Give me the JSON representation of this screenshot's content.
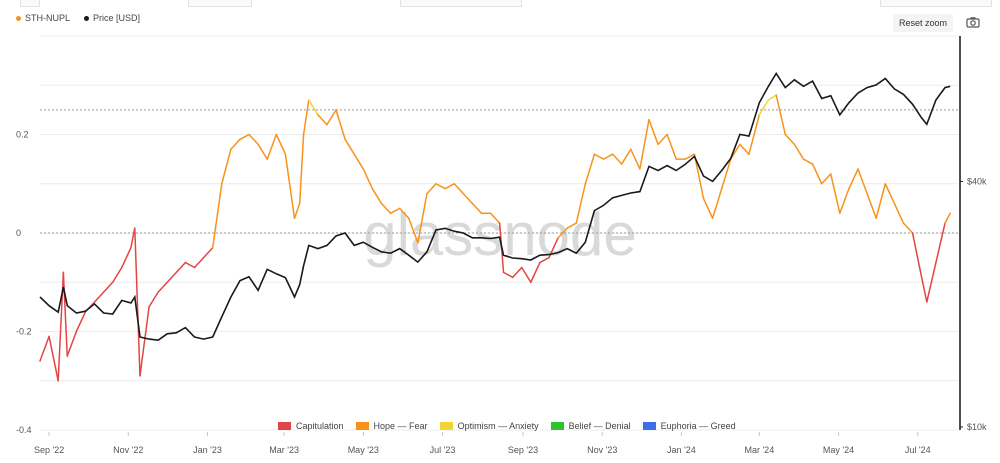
{
  "header": {
    "reset_zoom_label": "Reset zoom",
    "camera_icon": "camera-icon"
  },
  "watermark": "glassnode",
  "chart_data": {
    "type": "line",
    "series": [
      {
        "name": "STH-NUPL",
        "axis": "left",
        "color": "#f7931a",
        "values": [
          [
            "2022-08-25",
            -0.26
          ],
          [
            "2022-09-01",
            -0.21
          ],
          [
            "2022-09-08",
            -0.3
          ],
          [
            "2022-09-12",
            -0.08
          ],
          [
            "2022-09-15",
            -0.25
          ],
          [
            "2022-09-22",
            -0.2
          ],
          [
            "2022-09-29",
            -0.16
          ],
          [
            "2022-10-06",
            -0.14
          ],
          [
            "2022-10-13",
            -0.12
          ],
          [
            "2022-10-20",
            -0.1
          ],
          [
            "2022-10-27",
            -0.07
          ],
          [
            "2022-11-03",
            -0.03
          ],
          [
            "2022-11-06",
            0.01
          ],
          [
            "2022-11-10",
            -0.29
          ],
          [
            "2022-11-17",
            -0.15
          ],
          [
            "2022-11-24",
            -0.12
          ],
          [
            "2022-12-01",
            -0.1
          ],
          [
            "2022-12-08",
            -0.08
          ],
          [
            "2022-12-15",
            -0.06
          ],
          [
            "2022-12-22",
            -0.07
          ],
          [
            "2022-12-29",
            -0.05
          ],
          [
            "2023-01-05",
            -0.03
          ],
          [
            "2023-01-12",
            0.1
          ],
          [
            "2023-01-19",
            0.17
          ],
          [
            "2023-01-26",
            0.19
          ],
          [
            "2023-02-02",
            0.2
          ],
          [
            "2023-02-09",
            0.18
          ],
          [
            "2023-02-16",
            0.15
          ],
          [
            "2023-02-23",
            0.2
          ],
          [
            "2023-03-02",
            0.16
          ],
          [
            "2023-03-09",
            0.03
          ],
          [
            "2023-03-13",
            0.06
          ],
          [
            "2023-03-16",
            0.2
          ],
          [
            "2023-03-20",
            0.27
          ],
          [
            "2023-03-27",
            0.24
          ],
          [
            "2023-04-03",
            0.22
          ],
          [
            "2023-04-10",
            0.25
          ],
          [
            "2023-04-17",
            0.19
          ],
          [
            "2023-04-24",
            0.16
          ],
          [
            "2023-05-01",
            0.13
          ],
          [
            "2023-05-08",
            0.09
          ],
          [
            "2023-05-15",
            0.06
          ],
          [
            "2023-05-22",
            0.04
          ],
          [
            "2023-05-29",
            0.05
          ],
          [
            "2023-06-05",
            0.03
          ],
          [
            "2023-06-12",
            -0.02
          ],
          [
            "2023-06-19",
            0.08
          ],
          [
            "2023-06-26",
            0.1
          ],
          [
            "2023-07-03",
            0.09
          ],
          [
            "2023-07-10",
            0.1
          ],
          [
            "2023-07-17",
            0.08
          ],
          [
            "2023-07-24",
            0.06
          ],
          [
            "2023-07-31",
            0.04
          ],
          [
            "2023-08-07",
            0.04
          ],
          [
            "2023-08-14",
            0.02
          ],
          [
            "2023-08-17",
            -0.08
          ],
          [
            "2023-08-24",
            -0.09
          ],
          [
            "2023-08-31",
            -0.07
          ],
          [
            "2023-09-07",
            -0.1
          ],
          [
            "2023-09-14",
            -0.06
          ],
          [
            "2023-09-21",
            -0.05
          ],
          [
            "2023-09-28",
            -0.01
          ],
          [
            "2023-10-05",
            0.01
          ],
          [
            "2023-10-12",
            0.02
          ],
          [
            "2023-10-19",
            0.1
          ],
          [
            "2023-10-26",
            0.16
          ],
          [
            "2023-11-02",
            0.15
          ],
          [
            "2023-11-09",
            0.16
          ],
          [
            "2023-11-16",
            0.14
          ],
          [
            "2023-11-23",
            0.17
          ],
          [
            "2023-11-30",
            0.13
          ],
          [
            "2023-12-07",
            0.23
          ],
          [
            "2023-12-14",
            0.18
          ],
          [
            "2023-12-21",
            0.2
          ],
          [
            "2023-12-28",
            0.15
          ],
          [
            "2024-01-04",
            0.15
          ],
          [
            "2024-01-11",
            0.16
          ],
          [
            "2024-01-18",
            0.07
          ],
          [
            "2024-01-25",
            0.03
          ],
          [
            "2024-02-01",
            0.09
          ],
          [
            "2024-02-08",
            0.15
          ],
          [
            "2024-02-15",
            0.18
          ],
          [
            "2024-02-22",
            0.16
          ],
          [
            "2024-03-01",
            0.24
          ],
          [
            "2024-03-08",
            0.27
          ],
          [
            "2024-03-14",
            0.28
          ],
          [
            "2024-03-21",
            0.2
          ],
          [
            "2024-03-28",
            0.18
          ],
          [
            "2024-04-04",
            0.15
          ],
          [
            "2024-04-11",
            0.14
          ],
          [
            "2024-04-18",
            0.1
          ],
          [
            "2024-04-25",
            0.12
          ],
          [
            "2024-05-02",
            0.04
          ],
          [
            "2024-05-09",
            0.09
          ],
          [
            "2024-05-16",
            0.13
          ],
          [
            "2024-05-23",
            0.08
          ],
          [
            "2024-05-30",
            0.03
          ],
          [
            "2024-06-06",
            0.1
          ],
          [
            "2024-06-13",
            0.06
          ],
          [
            "2024-06-20",
            0.02
          ],
          [
            "2024-06-27",
            0.0
          ],
          [
            "2024-07-04",
            -0.09
          ],
          [
            "2024-07-08",
            -0.14
          ],
          [
            "2024-07-15",
            -0.06
          ],
          [
            "2024-07-22",
            0.02
          ],
          [
            "2024-07-26",
            0.04
          ]
        ]
      },
      {
        "name": "Price [USD]",
        "axis": "right",
        "color": "#1a1a1a",
        "values": [
          [
            "2022-08-25",
            21000
          ],
          [
            "2022-09-01",
            20000
          ],
          [
            "2022-09-08",
            19300
          ],
          [
            "2022-09-12",
            22200
          ],
          [
            "2022-09-15",
            20000
          ],
          [
            "2022-09-22",
            19200
          ],
          [
            "2022-09-29",
            19400
          ],
          [
            "2022-10-06",
            20200
          ],
          [
            "2022-10-13",
            19200
          ],
          [
            "2022-10-20",
            19100
          ],
          [
            "2022-10-27",
            20600
          ],
          [
            "2022-11-03",
            20300
          ],
          [
            "2022-11-06",
            21000
          ],
          [
            "2022-11-10",
            16800
          ],
          [
            "2022-11-17",
            16600
          ],
          [
            "2022-11-24",
            16500
          ],
          [
            "2022-12-01",
            17100
          ],
          [
            "2022-12-08",
            17200
          ],
          [
            "2022-12-15",
            17700
          ],
          [
            "2022-12-22",
            16800
          ],
          [
            "2022-12-29",
            16600
          ],
          [
            "2023-01-05",
            16800
          ],
          [
            "2023-01-12",
            18800
          ],
          [
            "2023-01-19",
            21000
          ],
          [
            "2023-01-26",
            23000
          ],
          [
            "2023-02-02",
            23500
          ],
          [
            "2023-02-09",
            21800
          ],
          [
            "2023-02-16",
            24500
          ],
          [
            "2023-02-23",
            23900
          ],
          [
            "2023-03-02",
            23400
          ],
          [
            "2023-03-09",
            21000
          ],
          [
            "2023-03-13",
            22500
          ],
          [
            "2023-03-16",
            25000
          ],
          [
            "2023-03-20",
            28000
          ],
          [
            "2023-03-27",
            27500
          ],
          [
            "2023-04-03",
            28000
          ],
          [
            "2023-04-10",
            29500
          ],
          [
            "2023-04-17",
            30000
          ],
          [
            "2023-04-24",
            28000
          ],
          [
            "2023-05-01",
            28500
          ],
          [
            "2023-05-08",
            27700
          ],
          [
            "2023-05-15",
            27000
          ],
          [
            "2023-05-22",
            26800
          ],
          [
            "2023-05-29",
            27500
          ],
          [
            "2023-06-05",
            26500
          ],
          [
            "2023-06-12",
            25500
          ],
          [
            "2023-06-19",
            27000
          ],
          [
            "2023-06-26",
            30500
          ],
          [
            "2023-07-03",
            30800
          ],
          [
            "2023-07-10",
            30300
          ],
          [
            "2023-07-17",
            30000
          ],
          [
            "2023-07-24",
            29200
          ],
          [
            "2023-07-31",
            29200
          ],
          [
            "2023-08-07",
            29100
          ],
          [
            "2023-08-14",
            29300
          ],
          [
            "2023-08-17",
            26500
          ],
          [
            "2023-08-24",
            26100
          ],
          [
            "2023-08-31",
            26000
          ],
          [
            "2023-09-07",
            25800
          ],
          [
            "2023-09-14",
            26500
          ],
          [
            "2023-09-21",
            26600
          ],
          [
            "2023-09-28",
            26900
          ],
          [
            "2023-10-05",
            27500
          ],
          [
            "2023-10-12",
            26800
          ],
          [
            "2023-10-19",
            28500
          ],
          [
            "2023-10-26",
            34000
          ],
          [
            "2023-11-02",
            35000
          ],
          [
            "2023-11-09",
            36500
          ],
          [
            "2023-11-16",
            37000
          ],
          [
            "2023-11-23",
            37500
          ],
          [
            "2023-11-30",
            37800
          ],
          [
            "2023-12-07",
            43500
          ],
          [
            "2023-12-14",
            42500
          ],
          [
            "2023-12-21",
            43700
          ],
          [
            "2023-12-28",
            42500
          ],
          [
            "2024-01-04",
            44000
          ],
          [
            "2024-01-11",
            46000
          ],
          [
            "2024-01-18",
            41200
          ],
          [
            "2024-01-25",
            40000
          ],
          [
            "2024-02-01",
            42500
          ],
          [
            "2024-02-08",
            45500
          ],
          [
            "2024-02-15",
            52000
          ],
          [
            "2024-02-22",
            51500
          ],
          [
            "2024-03-01",
            62000
          ],
          [
            "2024-03-08",
            68000
          ],
          [
            "2024-03-14",
            73000
          ],
          [
            "2024-03-21",
            67500
          ],
          [
            "2024-03-28",
            70500
          ],
          [
            "2024-04-04",
            68000
          ],
          [
            "2024-04-11",
            70000
          ],
          [
            "2024-04-18",
            63500
          ],
          [
            "2024-04-25",
            64500
          ],
          [
            "2024-05-02",
            58000
          ],
          [
            "2024-05-09",
            62000
          ],
          [
            "2024-05-16",
            65500
          ],
          [
            "2024-05-23",
            67500
          ],
          [
            "2024-05-30",
            68500
          ],
          [
            "2024-06-06",
            71000
          ],
          [
            "2024-06-13",
            67000
          ],
          [
            "2024-06-20",
            65000
          ],
          [
            "2024-06-27",
            61500
          ],
          [
            "2024-07-04",
            57000
          ],
          [
            "2024-07-08",
            55000
          ],
          [
            "2024-07-15",
            63000
          ],
          [
            "2024-07-22",
            67500
          ],
          [
            "2024-07-26",
            68000
          ]
        ]
      }
    ],
    "y_left": {
      "ticks": [
        0.2,
        0,
        -0.2,
        -0.4
      ],
      "tick_labels": [
        "0.2",
        "0",
        "-0.2",
        "-0.4"
      ],
      "range": [
        -0.4,
        0.4
      ]
    },
    "y_right": {
      "scale": "log",
      "ticks": [
        40000,
        10000
      ],
      "tick_labels": [
        "$40k",
        "$10k"
      ],
      "range": [
        10000,
        90000
      ]
    },
    "x_ticks": [
      [
        "2022-09-01",
        "Sep '22"
      ],
      [
        "2022-11-01",
        "Nov '22"
      ],
      [
        "2023-01-01",
        "Jan '23"
      ],
      [
        "2023-03-01",
        "Mar '23"
      ],
      [
        "2023-05-01",
        "May '23"
      ],
      [
        "2023-07-01",
        "Jul '23"
      ],
      [
        "2023-09-01",
        "Sep '23"
      ],
      [
        "2023-11-01",
        "Nov '23"
      ],
      [
        "2024-01-01",
        "Jan '24"
      ],
      [
        "2024-03-01",
        "Mar '24"
      ],
      [
        "2024-05-01",
        "May '24"
      ],
      [
        "2024-07-01",
        "Jul '24"
      ]
    ],
    "x_range": [
      "2022-08-25",
      "2024-08-01"
    ],
    "reference_lines_left": [
      0.25,
      0
    ],
    "zones": [
      {
        "name": "Capitulation",
        "color": "#e34545",
        "below": 0
      },
      {
        "name": "Hope — Fear",
        "color": "#f7931a",
        "below": 0.25
      },
      {
        "name": "Optimism — Anxiety",
        "color": "#f2d338",
        "below": 0.5
      },
      {
        "name": "Belief — Denial",
        "color": "#2ec22e",
        "below": 0.75
      },
      {
        "name": "Euphoria — Greed",
        "color": "#3d6ee8",
        "below": 1.0
      }
    ],
    "grid": true,
    "legend_top": [
      "STH-NUPL",
      "Price [USD]"
    ]
  }
}
